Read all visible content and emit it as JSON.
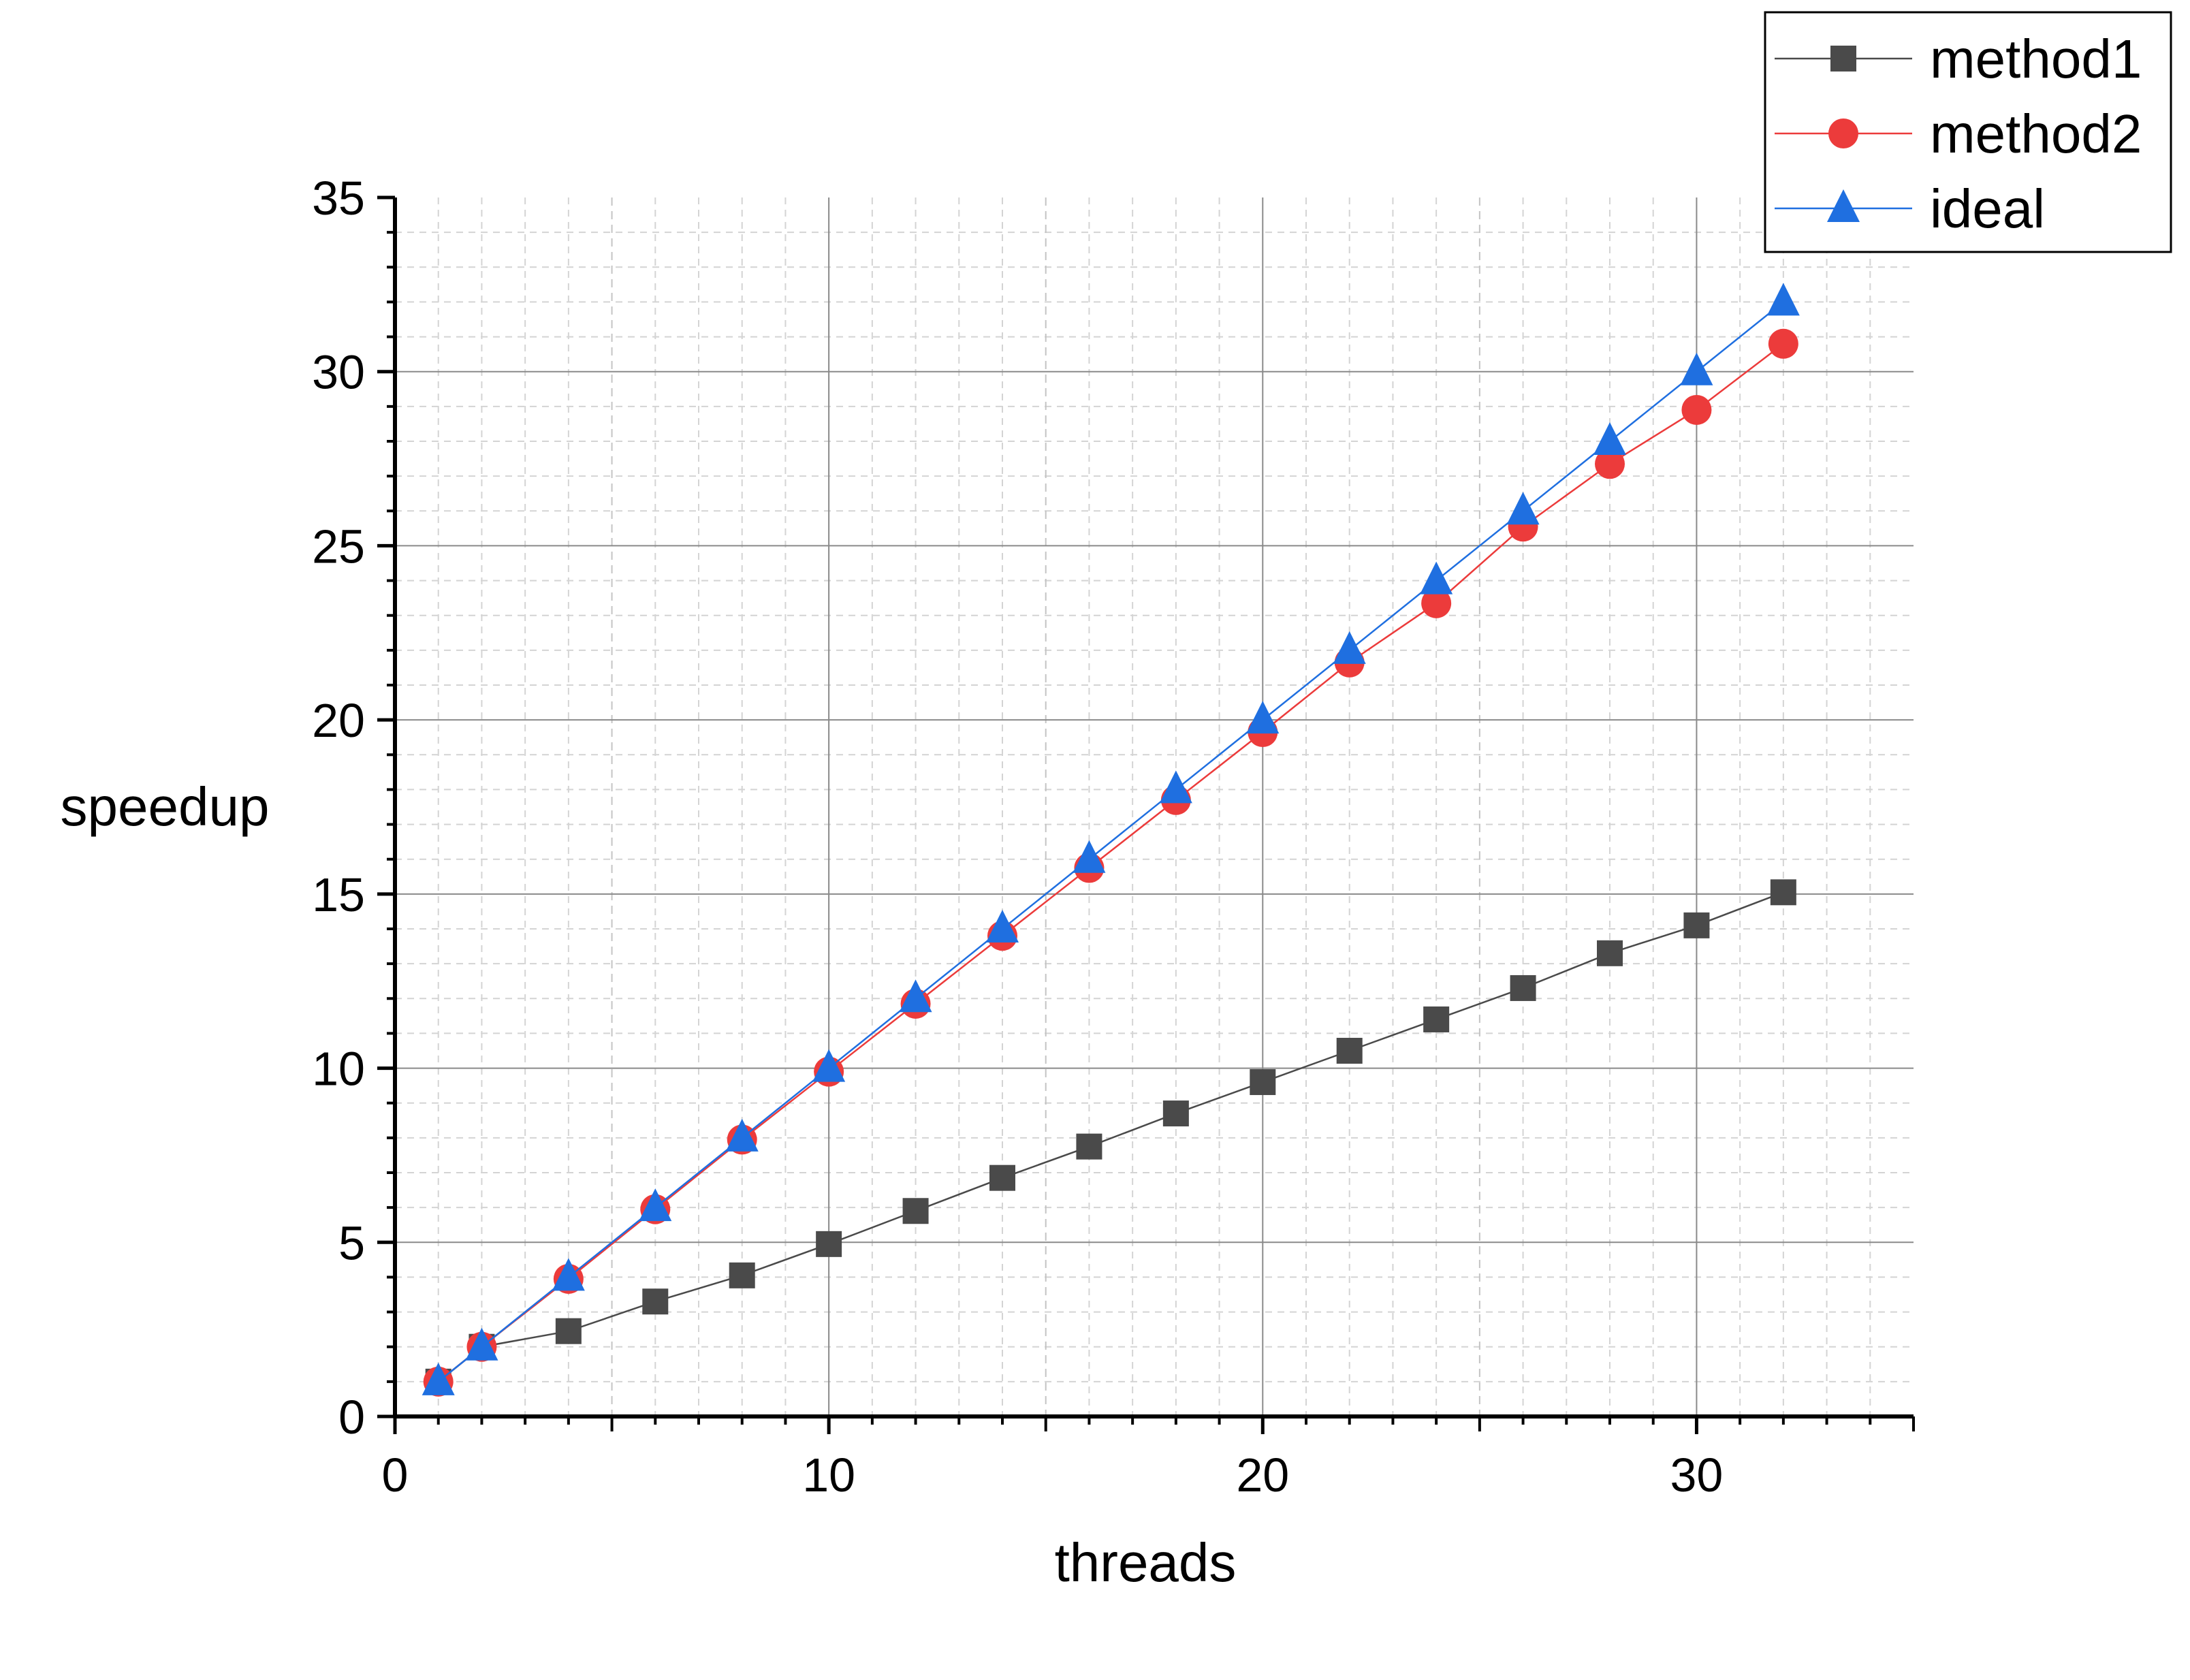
{
  "chart_data": {
    "type": "line",
    "xlabel": "threads",
    "ylabel": "speedup",
    "xlim": [
      0,
      35
    ],
    "ylim": [
      0,
      35
    ],
    "xticks": [
      0,
      10,
      20,
      30
    ],
    "yticks": [
      0,
      5,
      10,
      15,
      20,
      25,
      30,
      35
    ],
    "x_tick_labels": [
      "0",
      "10",
      "20",
      "30"
    ],
    "y_tick_labels": [
      "0",
      "5",
      "10",
      "15",
      "20",
      "25",
      "30",
      "35"
    ],
    "grid": true,
    "legend_position": "top-right",
    "x": [
      1,
      2,
      4,
      6,
      8,
      10,
      12,
      14,
      16,
      18,
      20,
      22,
      24,
      26,
      28,
      30,
      32
    ],
    "series": [
      {
        "name": "method1",
        "marker": "square",
        "color": "#4a4a4a",
        "values": [
          1,
          2,
          2.45,
          3.3,
          4.05,
          4.95,
          5.9,
          6.85,
          7.75,
          8.7,
          9.6,
          10.5,
          11.4,
          12.3,
          13.3,
          14.1,
          15.05
        ]
      },
      {
        "name": "method2",
        "marker": "circle",
        "color": "#ec3b3b",
        "values": [
          1,
          2,
          3.95,
          5.95,
          7.95,
          9.9,
          11.85,
          13.8,
          15.75,
          17.7,
          19.65,
          21.65,
          23.35,
          25.55,
          27.35,
          28.9,
          30.8
        ]
      },
      {
        "name": "ideal",
        "marker": "triangle",
        "color": "#1f6fe0",
        "values": [
          1,
          2,
          4,
          6,
          8,
          10,
          12,
          14,
          16,
          18,
          20,
          22,
          24,
          26,
          28,
          30,
          32
        ]
      }
    ]
  }
}
